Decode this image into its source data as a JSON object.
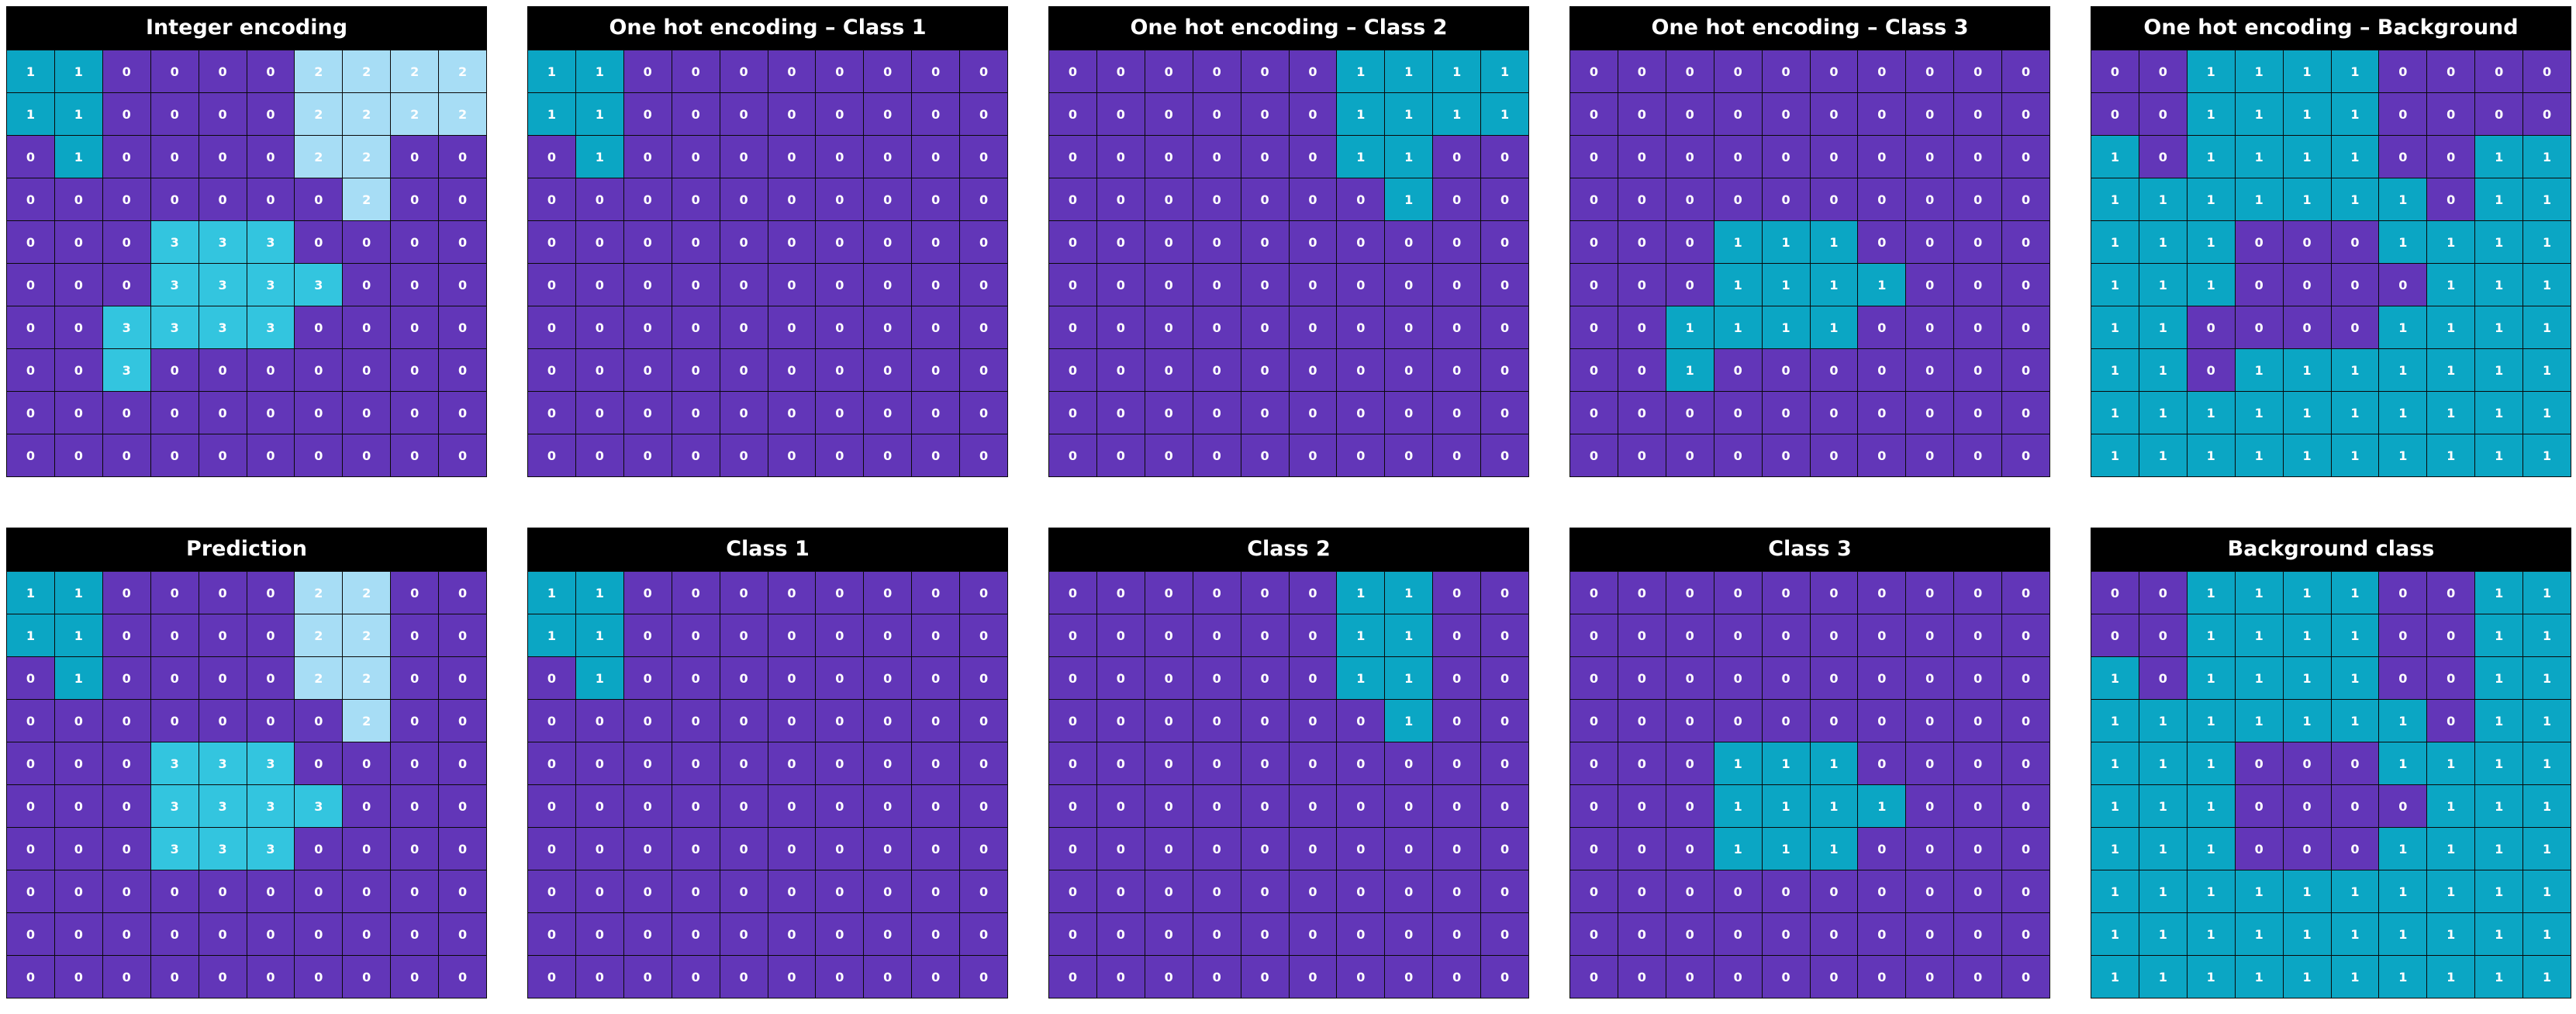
{
  "colors": {
    "zero": "#6236b8",
    "one": "#0ba6c4",
    "two": "#a7ddf5",
    "three": "#33c5df",
    "title_bg": "#000000",
    "title_fg": "#ffffff"
  },
  "panels": [
    {
      "title": "Integer encoding",
      "grid": [
        [
          1,
          1,
          0,
          0,
          0,
          0,
          2,
          2,
          2,
          2
        ],
        [
          1,
          1,
          0,
          0,
          0,
          0,
          2,
          2,
          2,
          2
        ],
        [
          0,
          1,
          0,
          0,
          0,
          0,
          2,
          2,
          0,
          0
        ],
        [
          0,
          0,
          0,
          0,
          0,
          0,
          0,
          2,
          0,
          0
        ],
        [
          0,
          0,
          0,
          3,
          3,
          3,
          0,
          0,
          0,
          0
        ],
        [
          0,
          0,
          0,
          3,
          3,
          3,
          3,
          0,
          0,
          0
        ],
        [
          0,
          0,
          3,
          3,
          3,
          3,
          0,
          0,
          0,
          0
        ],
        [
          0,
          0,
          3,
          0,
          0,
          0,
          0,
          0,
          0,
          0
        ],
        [
          0,
          0,
          0,
          0,
          0,
          0,
          0,
          0,
          0,
          0
        ],
        [
          0,
          0,
          0,
          0,
          0,
          0,
          0,
          0,
          0,
          0
        ]
      ]
    },
    {
      "title": "One hot encoding – Class 1",
      "grid": [
        [
          1,
          1,
          0,
          0,
          0,
          0,
          0,
          0,
          0,
          0
        ],
        [
          1,
          1,
          0,
          0,
          0,
          0,
          0,
          0,
          0,
          0
        ],
        [
          0,
          1,
          0,
          0,
          0,
          0,
          0,
          0,
          0,
          0
        ],
        [
          0,
          0,
          0,
          0,
          0,
          0,
          0,
          0,
          0,
          0
        ],
        [
          0,
          0,
          0,
          0,
          0,
          0,
          0,
          0,
          0,
          0
        ],
        [
          0,
          0,
          0,
          0,
          0,
          0,
          0,
          0,
          0,
          0
        ],
        [
          0,
          0,
          0,
          0,
          0,
          0,
          0,
          0,
          0,
          0
        ],
        [
          0,
          0,
          0,
          0,
          0,
          0,
          0,
          0,
          0,
          0
        ],
        [
          0,
          0,
          0,
          0,
          0,
          0,
          0,
          0,
          0,
          0
        ],
        [
          0,
          0,
          0,
          0,
          0,
          0,
          0,
          0,
          0,
          0
        ]
      ]
    },
    {
      "title": "One hot encoding – Class 2",
      "grid": [
        [
          0,
          0,
          0,
          0,
          0,
          0,
          1,
          1,
          1,
          1
        ],
        [
          0,
          0,
          0,
          0,
          0,
          0,
          1,
          1,
          1,
          1
        ],
        [
          0,
          0,
          0,
          0,
          0,
          0,
          1,
          1,
          0,
          0
        ],
        [
          0,
          0,
          0,
          0,
          0,
          0,
          0,
          1,
          0,
          0
        ],
        [
          0,
          0,
          0,
          0,
          0,
          0,
          0,
          0,
          0,
          0
        ],
        [
          0,
          0,
          0,
          0,
          0,
          0,
          0,
          0,
          0,
          0
        ],
        [
          0,
          0,
          0,
          0,
          0,
          0,
          0,
          0,
          0,
          0
        ],
        [
          0,
          0,
          0,
          0,
          0,
          0,
          0,
          0,
          0,
          0
        ],
        [
          0,
          0,
          0,
          0,
          0,
          0,
          0,
          0,
          0,
          0
        ],
        [
          0,
          0,
          0,
          0,
          0,
          0,
          0,
          0,
          0,
          0
        ]
      ]
    },
    {
      "title": "One hot encoding – Class 3",
      "grid": [
        [
          0,
          0,
          0,
          0,
          0,
          0,
          0,
          0,
          0,
          0
        ],
        [
          0,
          0,
          0,
          0,
          0,
          0,
          0,
          0,
          0,
          0
        ],
        [
          0,
          0,
          0,
          0,
          0,
          0,
          0,
          0,
          0,
          0
        ],
        [
          0,
          0,
          0,
          0,
          0,
          0,
          0,
          0,
          0,
          0
        ],
        [
          0,
          0,
          0,
          1,
          1,
          1,
          0,
          0,
          0,
          0
        ],
        [
          0,
          0,
          0,
          1,
          1,
          1,
          1,
          0,
          0,
          0
        ],
        [
          0,
          0,
          1,
          1,
          1,
          1,
          0,
          0,
          0,
          0
        ],
        [
          0,
          0,
          1,
          0,
          0,
          0,
          0,
          0,
          0,
          0
        ],
        [
          0,
          0,
          0,
          0,
          0,
          0,
          0,
          0,
          0,
          0
        ],
        [
          0,
          0,
          0,
          0,
          0,
          0,
          0,
          0,
          0,
          0
        ]
      ]
    },
    {
      "title": "One hot encoding – Background",
      "grid": [
        [
          0,
          0,
          1,
          1,
          1,
          1,
          0,
          0,
          0,
          0
        ],
        [
          0,
          0,
          1,
          1,
          1,
          1,
          0,
          0,
          0,
          0
        ],
        [
          1,
          0,
          1,
          1,
          1,
          1,
          0,
          0,
          1,
          1
        ],
        [
          1,
          1,
          1,
          1,
          1,
          1,
          1,
          0,
          1,
          1
        ],
        [
          1,
          1,
          1,
          0,
          0,
          0,
          1,
          1,
          1,
          1
        ],
        [
          1,
          1,
          1,
          0,
          0,
          0,
          0,
          1,
          1,
          1
        ],
        [
          1,
          1,
          0,
          0,
          0,
          0,
          1,
          1,
          1,
          1
        ],
        [
          1,
          1,
          0,
          1,
          1,
          1,
          1,
          1,
          1,
          1
        ],
        [
          1,
          1,
          1,
          1,
          1,
          1,
          1,
          1,
          1,
          1
        ],
        [
          1,
          1,
          1,
          1,
          1,
          1,
          1,
          1,
          1,
          1
        ]
      ]
    },
    {
      "title": "Prediction",
      "grid": [
        [
          1,
          1,
          0,
          0,
          0,
          0,
          2,
          2,
          0,
          0
        ],
        [
          1,
          1,
          0,
          0,
          0,
          0,
          2,
          2,
          0,
          0
        ],
        [
          0,
          1,
          0,
          0,
          0,
          0,
          2,
          2,
          0,
          0
        ],
        [
          0,
          0,
          0,
          0,
          0,
          0,
          0,
          2,
          0,
          0
        ],
        [
          0,
          0,
          0,
          3,
          3,
          3,
          0,
          0,
          0,
          0
        ],
        [
          0,
          0,
          0,
          3,
          3,
          3,
          3,
          0,
          0,
          0
        ],
        [
          0,
          0,
          0,
          3,
          3,
          3,
          0,
          0,
          0,
          0
        ],
        [
          0,
          0,
          0,
          0,
          0,
          0,
          0,
          0,
          0,
          0
        ],
        [
          0,
          0,
          0,
          0,
          0,
          0,
          0,
          0,
          0,
          0
        ],
        [
          0,
          0,
          0,
          0,
          0,
          0,
          0,
          0,
          0,
          0
        ]
      ]
    },
    {
      "title": "Class 1",
      "grid": [
        [
          1,
          1,
          0,
          0,
          0,
          0,
          0,
          0,
          0,
          0
        ],
        [
          1,
          1,
          0,
          0,
          0,
          0,
          0,
          0,
          0,
          0
        ],
        [
          0,
          1,
          0,
          0,
          0,
          0,
          0,
          0,
          0,
          0
        ],
        [
          0,
          0,
          0,
          0,
          0,
          0,
          0,
          0,
          0,
          0
        ],
        [
          0,
          0,
          0,
          0,
          0,
          0,
          0,
          0,
          0,
          0
        ],
        [
          0,
          0,
          0,
          0,
          0,
          0,
          0,
          0,
          0,
          0
        ],
        [
          0,
          0,
          0,
          0,
          0,
          0,
          0,
          0,
          0,
          0
        ],
        [
          0,
          0,
          0,
          0,
          0,
          0,
          0,
          0,
          0,
          0
        ],
        [
          0,
          0,
          0,
          0,
          0,
          0,
          0,
          0,
          0,
          0
        ],
        [
          0,
          0,
          0,
          0,
          0,
          0,
          0,
          0,
          0,
          0
        ]
      ]
    },
    {
      "title": "Class 2",
      "grid": [
        [
          0,
          0,
          0,
          0,
          0,
          0,
          1,
          1,
          0,
          0
        ],
        [
          0,
          0,
          0,
          0,
          0,
          0,
          1,
          1,
          0,
          0
        ],
        [
          0,
          0,
          0,
          0,
          0,
          0,
          1,
          1,
          0,
          0
        ],
        [
          0,
          0,
          0,
          0,
          0,
          0,
          0,
          1,
          0,
          0
        ],
        [
          0,
          0,
          0,
          0,
          0,
          0,
          0,
          0,
          0,
          0
        ],
        [
          0,
          0,
          0,
          0,
          0,
          0,
          0,
          0,
          0,
          0
        ],
        [
          0,
          0,
          0,
          0,
          0,
          0,
          0,
          0,
          0,
          0
        ],
        [
          0,
          0,
          0,
          0,
          0,
          0,
          0,
          0,
          0,
          0
        ],
        [
          0,
          0,
          0,
          0,
          0,
          0,
          0,
          0,
          0,
          0
        ],
        [
          0,
          0,
          0,
          0,
          0,
          0,
          0,
          0,
          0,
          0
        ]
      ]
    },
    {
      "title": "Class 3",
      "grid": [
        [
          0,
          0,
          0,
          0,
          0,
          0,
          0,
          0,
          0,
          0
        ],
        [
          0,
          0,
          0,
          0,
          0,
          0,
          0,
          0,
          0,
          0
        ],
        [
          0,
          0,
          0,
          0,
          0,
          0,
          0,
          0,
          0,
          0
        ],
        [
          0,
          0,
          0,
          0,
          0,
          0,
          0,
          0,
          0,
          0
        ],
        [
          0,
          0,
          0,
          1,
          1,
          1,
          0,
          0,
          0,
          0
        ],
        [
          0,
          0,
          0,
          1,
          1,
          1,
          1,
          0,
          0,
          0
        ],
        [
          0,
          0,
          0,
          1,
          1,
          1,
          0,
          0,
          0,
          0
        ],
        [
          0,
          0,
          0,
          0,
          0,
          0,
          0,
          0,
          0,
          0
        ],
        [
          0,
          0,
          0,
          0,
          0,
          0,
          0,
          0,
          0,
          0
        ],
        [
          0,
          0,
          0,
          0,
          0,
          0,
          0,
          0,
          0,
          0
        ]
      ]
    },
    {
      "title": "Background class",
      "grid": [
        [
          0,
          0,
          1,
          1,
          1,
          1,
          0,
          0,
          1,
          1
        ],
        [
          0,
          0,
          1,
          1,
          1,
          1,
          0,
          0,
          1,
          1
        ],
        [
          1,
          0,
          1,
          1,
          1,
          1,
          0,
          0,
          1,
          1
        ],
        [
          1,
          1,
          1,
          1,
          1,
          1,
          1,
          0,
          1,
          1
        ],
        [
          1,
          1,
          1,
          0,
          0,
          0,
          1,
          1,
          1,
          1
        ],
        [
          1,
          1,
          1,
          0,
          0,
          0,
          0,
          1,
          1,
          1
        ],
        [
          1,
          1,
          1,
          0,
          0,
          0,
          1,
          1,
          1,
          1
        ],
        [
          1,
          1,
          1,
          1,
          1,
          1,
          1,
          1,
          1,
          1
        ],
        [
          1,
          1,
          1,
          1,
          1,
          1,
          1,
          1,
          1,
          1
        ],
        [
          1,
          1,
          1,
          1,
          1,
          1,
          1,
          1,
          1,
          1
        ]
      ]
    }
  ]
}
